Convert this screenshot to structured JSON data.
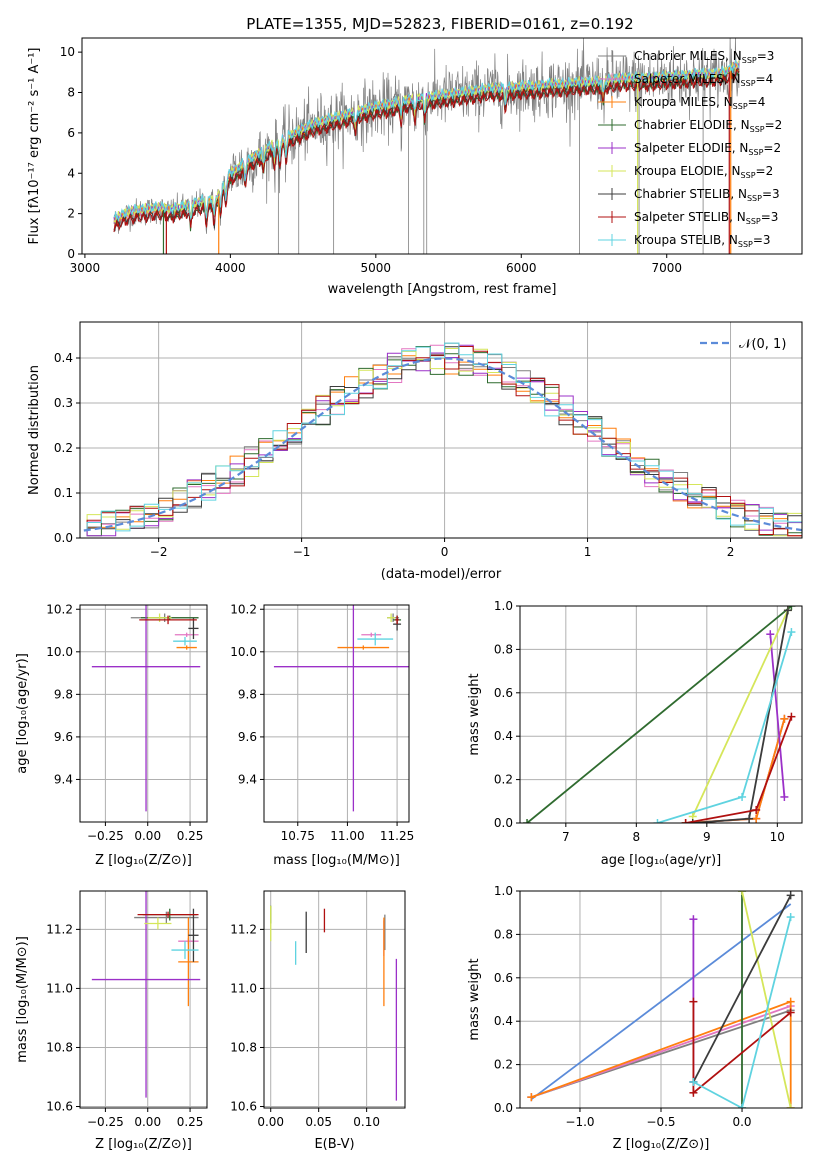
{
  "figure_title": "PLATE=1355, MJD=52823, FIBERID=0161, z=0.192",
  "colors": {
    "grid": "#b0b0b0",
    "models": [
      "#808080",
      "#e377c2",
      "#ff7f0e",
      "#2f6b2f",
      "#9b30c8",
      "#d5e65a",
      "#3c3c3c",
      "#b01010",
      "#5fd3e0"
    ],
    "gauss": "#5b8bd9"
  },
  "chart_data": [
    {
      "id": "spectrum",
      "type": "line",
      "title": "PLATE=1355, MJD=52823, FIBERID=0161, z=0.192",
      "xlabel": "wavelength [Angstrom, rest frame]",
      "ylabel": "Flux [fλ10⁻¹⁷ erg cm⁻² s⁻¹ A⁻¹]",
      "xlim": [
        2980,
        7930
      ],
      "ylim": [
        0,
        10.7
      ],
      "xticks": [
        3000,
        4000,
        5000,
        6000,
        7000
      ],
      "yticks": [
        0,
        2,
        4,
        6,
        8,
        10
      ],
      "grid": false,
      "legend_position": "upper-right",
      "legend": [
        "Chabrier MILES, N_SSP=3",
        "Salpeter MILES, N_SSP=4",
        "Kroupa MILES, N_SSP=4",
        "Chabrier ELODIE, N_SSP=2",
        "Salpeter ELODIE, N_SSP=2",
        "Kroupa ELODIE, N_SSP=2",
        "Chabrier STELIB, N_SSP=3",
        "Salpeter STELIB, N_SSP=3",
        "Kroupa STELIB, N_SSP=3"
      ],
      "continuum": {
        "x": [
          3200,
          3300,
          3400,
          3500,
          3600,
          3700,
          3800,
          3900,
          4000,
          4100,
          4200,
          4300,
          4400,
          4500,
          4600,
          4700,
          4800,
          4900,
          5000,
          5100,
          5200,
          5300,
          5400,
          5500,
          5600,
          5700,
          5800,
          5900,
          6000,
          6100,
          6200,
          6300,
          6400,
          6500,
          6600,
          6700,
          6800,
          6900,
          7000,
          7100,
          7200,
          7300,
          7400,
          7500
        ],
        "y": [
          1.6,
          2.0,
          2.1,
          2.2,
          2.1,
          2.3,
          2.5,
          2.6,
          3.9,
          4.4,
          4.9,
          5.3,
          5.7,
          6.1,
          6.4,
          6.6,
          6.8,
          7.0,
          7.2,
          7.3,
          7.5,
          7.6,
          7.7,
          7.8,
          7.9,
          8.0,
          8.1,
          8.1,
          8.2,
          8.2,
          8.3,
          8.3,
          8.4,
          8.4,
          8.5,
          8.6,
          8.6,
          8.6,
          8.7,
          8.7,
          8.8,
          8.8,
          8.9,
          9.3
        ]
      }
    },
    {
      "id": "residuals",
      "type": "bar",
      "xlabel": "(data-model)/error",
      "ylabel": "Normed distribution",
      "xlim": [
        -2.55,
        2.5
      ],
      "ylim": [
        0,
        0.48
      ],
      "xticks": [
        -2,
        -1,
        0,
        1,
        2
      ],
      "yticks": [
        0.0,
        0.1,
        0.2,
        0.3,
        0.4
      ],
      "grid": true,
      "legend_position": "upper-right",
      "legend": [
        "𝒩(0, 1)"
      ],
      "bin_width": 0.1
    },
    {
      "id": "age-vs-Z",
      "type": "scatter",
      "xlabel": "Z [log₁₀(Z/Z⊙)]",
      "ylabel": "age  [log₁₀(age/yr)]",
      "xlim": [
        -0.4,
        0.35
      ],
      "ylim": [
        9.2,
        10.22
      ],
      "xticks": [
        -0.25,
        0.0,
        0.25
      ],
      "yticks": [
        9.4,
        9.6,
        9.8,
        10.0,
        10.2
      ],
      "grid": true,
      "points": [
        {
          "x": 0.1,
          "xerr": 0.2,
          "y": 10.16,
          "yerr": 0.02
        },
        {
          "x": 0.23,
          "xerr": 0.07,
          "y": 10.08,
          "yerr": 0.01
        },
        {
          "x": 0.23,
          "xerr": 0.06,
          "y": 10.02,
          "yerr": 0.01
        },
        {
          "x": 0.13,
          "xerr": 0.17,
          "y": 10.16,
          "yerr": 0.01
        },
        {
          "x": -0.01,
          "xerr": 0.32,
          "y": 9.93,
          "yerr": 0.68
        },
        {
          "x": 0.07,
          "xerr": 0.07,
          "y": 10.16,
          "yerr": 0.02
        },
        {
          "x": 0.27,
          "xerr": 0.03,
          "y": 10.11,
          "yerr": 0.05
        },
        {
          "x": 0.12,
          "xerr": 0.17,
          "y": 10.15,
          "yerr": 0.02
        },
        {
          "x": 0.22,
          "xerr": 0.07,
          "y": 10.05,
          "yerr": 0.02
        }
      ]
    },
    {
      "id": "age-vs-mass",
      "type": "scatter",
      "xlabel": "mass [log₁₀(M/M⊙)]",
      "xlim": [
        10.58,
        11.31
      ],
      "ylim": [
        9.2,
        10.22
      ],
      "xticks": [
        10.75,
        11.0,
        11.25
      ],
      "yticks": [
        9.4,
        9.6,
        9.8,
        10.0,
        10.2
      ],
      "grid": true,
      "points": [
        {
          "x": 11.23,
          "xerr": 0.03,
          "y": 10.16,
          "yerr": 0.02
        },
        {
          "x": 11.12,
          "xerr": 0.05,
          "y": 10.08,
          "yerr": 0.01
        },
        {
          "x": 11.08,
          "xerr": 0.13,
          "y": 10.02,
          "yerr": 0.01
        },
        {
          "x": 11.25,
          "xerr": 0.02,
          "y": 10.15,
          "yerr": 0.02
        },
        {
          "x": 11.03,
          "xerr": 0.4,
          "y": 9.93,
          "yerr": 0.68
        },
        {
          "x": 11.22,
          "xerr": 0.02,
          "y": 10.16,
          "yerr": 0.02
        },
        {
          "x": 11.25,
          "xerr": 0.02,
          "y": 10.13,
          "yerr": 0.03
        },
        {
          "x": 11.25,
          "xerr": 0.01,
          "y": 10.15,
          "yerr": 0.02
        },
        {
          "x": 11.14,
          "xerr": 0.09,
          "y": 10.06,
          "yerr": 0.03
        }
      ]
    },
    {
      "id": "weight-vs-age",
      "type": "line",
      "xlabel": "age  [log₁₀(age/yr)]",
      "ylabel": "mass weight",
      "xlim": [
        6.35,
        10.35
      ],
      "ylim": [
        0,
        1.0
      ],
      "xticks": [
        7,
        8,
        9,
        10
      ],
      "yticks": [
        0.0,
        0.2,
        0.4,
        0.6,
        0.8,
        1.0
      ],
      "grid": true,
      "series": [
        {
          "x": [
            8.7,
            9.7,
            10.1
          ],
          "y": [
            0.0,
            0.02,
            0.48
          ]
        },
        {
          "x": [
            8.7,
            9.7,
            10.1
          ],
          "y": [
            0.0,
            0.02,
            0.48
          ]
        },
        {
          "x": [
            8.7,
            9.7,
            10.1
          ],
          "y": [
            0.0,
            0.02,
            0.48
          ]
        },
        {
          "x": [
            6.45,
            10.2
          ],
          "y": [
            0.0,
            1.0
          ]
        },
        {
          "x": [
            9.9,
            10.1
          ],
          "y": [
            0.87,
            0.12
          ]
        },
        {
          "x": [
            8.8,
            10.15
          ],
          "y": [
            0.03,
            0.98
          ]
        },
        {
          "x": [
            8.8,
            9.6,
            10.15
          ],
          "y": [
            0.0,
            0.02,
            0.98
          ]
        },
        {
          "x": [
            8.7,
            9.7,
            10.2
          ],
          "y": [
            0.0,
            0.06,
            0.49
          ]
        },
        {
          "x": [
            8.3,
            9.5,
            10.2
          ],
          "y": [
            0.0,
            0.12,
            0.88
          ]
        }
      ]
    },
    {
      "id": "mass-vs-Z",
      "type": "scatter",
      "xlabel": "Z [log₁₀(Z/Z⊙)]",
      "ylabel": "mass [log₁₀(M/M⊙)]",
      "xlim": [
        -0.4,
        0.35
      ],
      "ylim": [
        10.595,
        11.33
      ],
      "xticks": [
        -0.25,
        0.0,
        0.25
      ],
      "yticks": [
        10.6,
        10.8,
        11.0,
        11.2
      ],
      "grid": true,
      "points": [
        {
          "x": 0.11,
          "xerr": 0.19,
          "y": 11.24,
          "yerr": 0.02
        },
        {
          "x": 0.24,
          "xerr": 0.06,
          "y": 11.16,
          "yerr": 0.01
        },
        {
          "x": 0.24,
          "xerr": 0.06,
          "y": 11.09,
          "yerr": 0.15
        },
        {
          "x": 0.13,
          "xerr": 0.16,
          "y": 11.25,
          "yerr": 0.02
        },
        {
          "x": -0.01,
          "xerr": 0.32,
          "y": 11.03,
          "yerr": 0.4
        },
        {
          "x": 0.06,
          "xerr": 0.08,
          "y": 11.22,
          "yerr": 0.02
        },
        {
          "x": 0.27,
          "xerr": 0.03,
          "y": 11.18,
          "yerr": 0.09
        },
        {
          "x": 0.12,
          "xerr": 0.18,
          "y": 11.25,
          "yerr": 0.01
        },
        {
          "x": 0.22,
          "xerr": 0.08,
          "y": 11.13,
          "yerr": 0.03
        }
      ]
    },
    {
      "id": "mass-vs-ebv",
      "type": "scatter",
      "xlabel": "E(B-V)",
      "xlim": [
        -0.007,
        0.14
      ],
      "ylim": [
        10.595,
        11.33
      ],
      "xticks": [
        0.0,
        0.05,
        0.1
      ],
      "yticks": [
        10.6,
        10.8,
        11.0,
        11.2
      ],
      "grid": true,
      "points": [
        {
          "x": 0.119,
          "y": 11.19,
          "yerr": 0.06
        },
        {
          "x": 0.118,
          "y": 11.17,
          "yerr": 0.06
        },
        {
          "x": 0.118,
          "y": 11.09,
          "yerr": 0.15
        },
        {
          "x": 0.0,
          "y": 11.25,
          "yerr": 0.03
        },
        {
          "x": 0.131,
          "y": 10.86,
          "yerr": 0.24
        },
        {
          "x": 0.0,
          "y": 11.22,
          "yerr": 0.06
        },
        {
          "x": 0.037,
          "y": 11.19,
          "yerr": 0.07
        },
        {
          "x": 0.056,
          "y": 11.23,
          "yerr": 0.04
        },
        {
          "x": 0.026,
          "y": 11.12,
          "yerr": 0.04
        }
      ]
    },
    {
      "id": "weight-vs-Z",
      "type": "line",
      "xlabel": "Z [log₁₀(Z/Z⊙)]",
      "ylabel": "mass weight",
      "xlim": [
        -1.37,
        0.37
      ],
      "ylim": [
        0,
        1.0
      ],
      "xticks": [
        -1.0,
        -0.5,
        0.0
      ],
      "yticks": [
        0.0,
        0.2,
        0.4,
        0.6,
        0.8,
        1.0
      ],
      "grid": true,
      "series": [
        {
          "x": [
            -1.3,
            0.3
          ],
          "y": [
            0.05,
            0.45
          ]
        },
        {
          "x": [
            -1.3,
            0.3
          ],
          "y": [
            0.05,
            0.47
          ]
        },
        {
          "x": [
            -1.3,
            0.3,
            0.3
          ],
          "y": [
            0.05,
            0.49,
            0.0
          ]
        },
        {
          "x": [
            0.0,
            0.0
          ],
          "y": [
            1.0,
            0.0
          ]
        },
        {
          "x": [
            -0.3,
            -0.3
          ],
          "y": [
            0.87,
            0.12
          ]
        },
        {
          "x": [
            0.0,
            0.3
          ],
          "y": [
            1.0,
            0.0
          ]
        },
        {
          "x": [
            -0.3,
            0.3
          ],
          "y": [
            0.12,
            0.98
          ]
        },
        {
          "x": [
            -0.3,
            -0.3,
            0.3
          ],
          "y": [
            0.49,
            0.07,
            0.44
          ]
        },
        {
          "x": [
            -0.3,
            0.0,
            0.3
          ],
          "y": [
            0.12,
            0.0,
            0.88
          ]
        }
      ],
      "fit_line": {
        "x": [
          -1.3,
          0.3
        ],
        "y": [
          0.04,
          0.94
        ]
      }
    }
  ]
}
